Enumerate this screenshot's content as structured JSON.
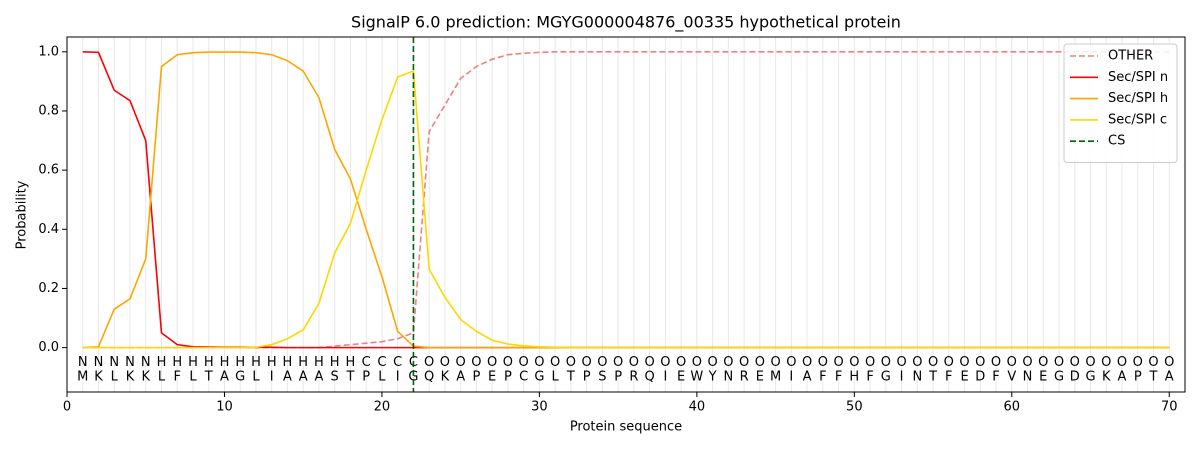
{
  "chart_data": {
    "type": "line",
    "title": "SignalP 6.0 prediction: MGYG000004876_00335 hypothetical protein",
    "x_label": "Protein sequence",
    "y_label": "Probability",
    "x": [
      1,
      2,
      3,
      4,
      5,
      6,
      7,
      8,
      9,
      10,
      11,
      12,
      13,
      14,
      15,
      16,
      17,
      18,
      19,
      20,
      21,
      22,
      23,
      24,
      25,
      26,
      27,
      28,
      29,
      30,
      31,
      32,
      33,
      34,
      35,
      36,
      37,
      38,
      39,
      40,
      41,
      42,
      43,
      44,
      45,
      46,
      47,
      48,
      49,
      50,
      51,
      52,
      53,
      54,
      55,
      56,
      57,
      58,
      59,
      60,
      61,
      62,
      63,
      64,
      65,
      66,
      67,
      68,
      69,
      70
    ],
    "residues": [
      "M",
      "K",
      "L",
      "K",
      "K",
      "L",
      "F",
      "L",
      "T",
      "A",
      "G",
      "L",
      "I",
      "A",
      "A",
      "A",
      "S",
      "T",
      "P",
      "L",
      "I",
      "G",
      "Q",
      "K",
      "A",
      "P",
      "E",
      "P",
      "C",
      "G",
      "L",
      "T",
      "P",
      "S",
      "P",
      "R",
      "Q",
      "I",
      "E",
      "W",
      "Y",
      "N",
      "R",
      "E",
      "M",
      "I",
      "A",
      "F",
      "F",
      "H",
      "F",
      "G",
      "I",
      "N",
      "T",
      "F",
      "E",
      "D",
      "F",
      "V",
      "N",
      "E",
      "G",
      "D",
      "G",
      "K",
      "A",
      "P",
      "T",
      "A"
    ],
    "regions": [
      "N",
      "N",
      "N",
      "N",
      "N",
      "H",
      "H",
      "H",
      "H",
      "H",
      "H",
      "H",
      "H",
      "H",
      "H",
      "H",
      "H",
      "H",
      "C",
      "C",
      "C",
      "C",
      "O",
      "O",
      "O",
      "O",
      "O",
      "O",
      "O",
      "O",
      "O",
      "O",
      "O",
      "O",
      "O",
      "O",
      "O",
      "O",
      "O",
      "O",
      "O",
      "O",
      "O",
      "O",
      "O",
      "O",
      "O",
      "O",
      "O",
      "O",
      "O",
      "O",
      "O",
      "O",
      "O",
      "O",
      "O",
      "O",
      "O",
      "O",
      "O",
      "O",
      "O",
      "O",
      "O",
      "O",
      "O",
      "O",
      "O",
      "O"
    ],
    "region_colors": {
      "N": "#ff0000",
      "H": "#ffa500",
      "C": "#ffd700",
      "O": "#808080"
    },
    "series": [
      {
        "name": "OTHER",
        "color": "#f08080",
        "linestyle": "dashed",
        "values": [
          0,
          0,
          0,
          0,
          0,
          0,
          0,
          0,
          0,
          0,
          0,
          0,
          0,
          0,
          0,
          0,
          0.005,
          0.01,
          0.015,
          0.02,
          0.03,
          0.05,
          0.73,
          0.82,
          0.91,
          0.95,
          0.975,
          0.99,
          0.995,
          0.998,
          1,
          1,
          1,
          1,
          1,
          1,
          1,
          1,
          1,
          1,
          1,
          1,
          1,
          1,
          1,
          1,
          1,
          1,
          1,
          1,
          1,
          1,
          1,
          1,
          1,
          1,
          1,
          1,
          1,
          1,
          1,
          1,
          1,
          1,
          1,
          1,
          1,
          1,
          1,
          1
        ]
      },
      {
        "name": "Sec/SPI n",
        "color": "#ff0000",
        "linestyle": "solid",
        "values": [
          1.0,
          0.998,
          0.87,
          0.835,
          0.7,
          0.05,
          0.01,
          0.003,
          0.002,
          0.001,
          0.001,
          0.001,
          0.001,
          0,
          0,
          0,
          0,
          0,
          0,
          0,
          0,
          0,
          0,
          0,
          0,
          0,
          0,
          0,
          0,
          0,
          0,
          0,
          0,
          0,
          0,
          0,
          0,
          0,
          0,
          0,
          0,
          0,
          0,
          0,
          0,
          0,
          0,
          0,
          0,
          0,
          0,
          0,
          0,
          0,
          0,
          0,
          0,
          0,
          0,
          0,
          0,
          0,
          0,
          0,
          0,
          0,
          0,
          0,
          0,
          0
        ]
      },
      {
        "name": "Sec/SPI h",
        "color": "#ffa500",
        "linestyle": "solid",
        "values": [
          0,
          0.003,
          0.13,
          0.165,
          0.3,
          0.95,
          0.99,
          0.997,
          0.999,
          0.999,
          0.999,
          0.997,
          0.99,
          0.97,
          0.935,
          0.845,
          0.67,
          0.57,
          0.4,
          0.24,
          0.055,
          0.005,
          0,
          0,
          0,
          0,
          0,
          0,
          0,
          0,
          0,
          0,
          0,
          0,
          0,
          0,
          0,
          0,
          0,
          0,
          0,
          0,
          0,
          0,
          0,
          0,
          0,
          0,
          0,
          0,
          0,
          0,
          0,
          0,
          0,
          0,
          0,
          0,
          0,
          0,
          0,
          0,
          0,
          0,
          0,
          0,
          0,
          0,
          0,
          0
        ]
      },
      {
        "name": "Sec/SPI c",
        "color": "#ffd700",
        "linestyle": "solid",
        "values": [
          0,
          0,
          0,
          0,
          0,
          0,
          0,
          0,
          0,
          0,
          0,
          0.001,
          0.01,
          0.03,
          0.06,
          0.15,
          0.32,
          0.42,
          0.6,
          0.77,
          0.915,
          0.935,
          0.265,
          0.17,
          0.095,
          0.055,
          0.025,
          0.012,
          0.006,
          0.003,
          0.001,
          0,
          0,
          0,
          0,
          0,
          0,
          0,
          0,
          0,
          0,
          0,
          0,
          0,
          0,
          0,
          0,
          0,
          0,
          0,
          0,
          0,
          0,
          0,
          0,
          0,
          0,
          0,
          0,
          0,
          0,
          0,
          0,
          0,
          0,
          0,
          0,
          0,
          0,
          0
        ]
      }
    ],
    "cs": {
      "name": "CS",
      "x": 22,
      "color": "#006400"
    },
    "xlim": [
      0,
      71
    ],
    "ylim": [
      -0.15,
      1.05
    ],
    "xticks": [
      0,
      10,
      20,
      30,
      40,
      50,
      60,
      70
    ],
    "yticks": [
      {
        "value": 0,
        "label": "0.0"
      },
      {
        "value": 0.2,
        "label": "0.2"
      },
      {
        "value": 0.4,
        "label": "0.4"
      },
      {
        "value": 0.6,
        "label": "0.6"
      },
      {
        "value": 0.8,
        "label": "0.8"
      },
      {
        "value": 1.0,
        "label": "1.0"
      }
    ],
    "legend": "upper right"
  }
}
